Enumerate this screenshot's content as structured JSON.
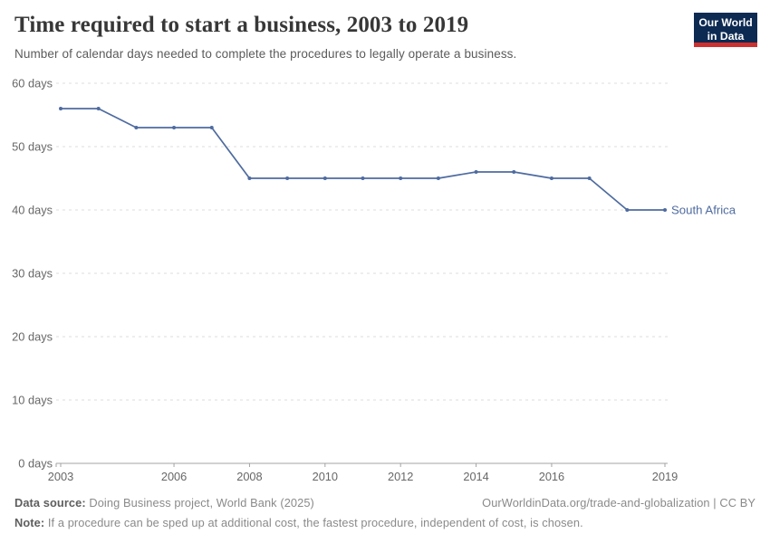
{
  "header": {
    "title": "Time required to start a business, 2003 to 2019",
    "subtitle": "Number of calendar days needed to complete the procedures to legally operate a business.",
    "logo": {
      "line1": "Our World",
      "line2": "in Data",
      "bg_color": "#0d2a52",
      "bar_color": "#cc3130"
    }
  },
  "chart_data": {
    "type": "line",
    "title": "Time required to start a business, 2003 to 2019",
    "xlabel": "",
    "ylabel": "",
    "xlim": [
      2003,
      2019
    ],
    "ylim": [
      0,
      60
    ],
    "grid": "horizontal-dashed",
    "legend_position": "end-of-line",
    "xticks": [
      2003,
      2006,
      2008,
      2010,
      2012,
      2014,
      2016,
      2019
    ],
    "yticks": [
      0,
      10,
      20,
      30,
      40,
      50,
      60
    ],
    "ytick_suffix": " days",
    "series": [
      {
        "name": "South Africa",
        "color": "#4e6ba0",
        "x": [
          2003,
          2004,
          2005,
          2006,
          2007,
          2008,
          2009,
          2010,
          2011,
          2012,
          2013,
          2014,
          2015,
          2016,
          2017,
          2018,
          2019
        ],
        "values": [
          56,
          56,
          53,
          53,
          53,
          45,
          45,
          45,
          45,
          45,
          45,
          46,
          46,
          45,
          45,
          40,
          40
        ]
      }
    ]
  },
  "footer": {
    "source_label": "Data source:",
    "source_value": " Doing Business project, World Bank (2025)",
    "right_text": "OurWorldinData.org/trade-and-globalization | CC BY",
    "note_label": "Note:",
    "note_value": " If a procedure can be sped up at additional cost, the fastest procedure, independent of cost, is chosen."
  }
}
